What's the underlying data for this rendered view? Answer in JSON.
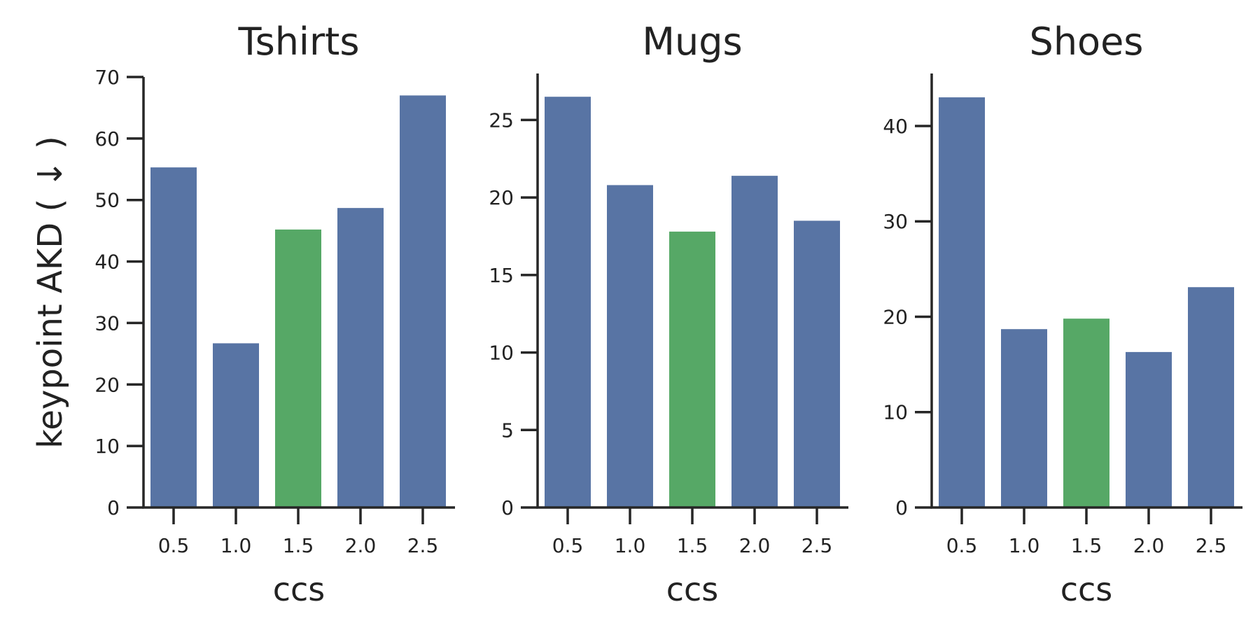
{
  "chart_data": [
    {
      "type": "bar",
      "title": "Tshirts",
      "xlabel": "ccs",
      "ylabel": "keypoint AKD ( ↓ )",
      "categories": [
        "0.5",
        "1.0",
        "1.5",
        "2.0",
        "2.5"
      ],
      "values": [
        55.3,
        26.7,
        45.2,
        48.7,
        67.0
      ],
      "highlight_index": 2,
      "ylim": [
        0,
        70
      ],
      "yticks": [
        0,
        10,
        20,
        30,
        40,
        50,
        60,
        70
      ],
      "grid": false
    },
    {
      "type": "bar",
      "title": "Mugs",
      "xlabel": "ccs",
      "ylabel": "",
      "categories": [
        "0.5",
        "1.0",
        "1.5",
        "2.0",
        "2.5"
      ],
      "values": [
        26.5,
        20.8,
        17.8,
        21.4,
        18.5
      ],
      "highlight_index": 2,
      "ylim": [
        0,
        28
      ],
      "yticks": [
        0,
        5,
        10,
        15,
        20,
        25
      ],
      "grid": false
    },
    {
      "type": "bar",
      "title": "Shoes",
      "xlabel": "ccs",
      "ylabel": "",
      "categories": [
        "0.5",
        "1.0",
        "1.5",
        "2.0",
        "2.5"
      ],
      "values": [
        43.0,
        18.7,
        19.8,
        16.3,
        23.1
      ],
      "highlight_index": 2,
      "ylim": [
        0,
        45.5
      ],
      "yticks": [
        0,
        10,
        20,
        30,
        40
      ],
      "grid": false
    }
  ],
  "colors": {
    "bar": "#5874a4",
    "highlight": "#56a866",
    "axis": "#262626",
    "text": "#222222"
  }
}
